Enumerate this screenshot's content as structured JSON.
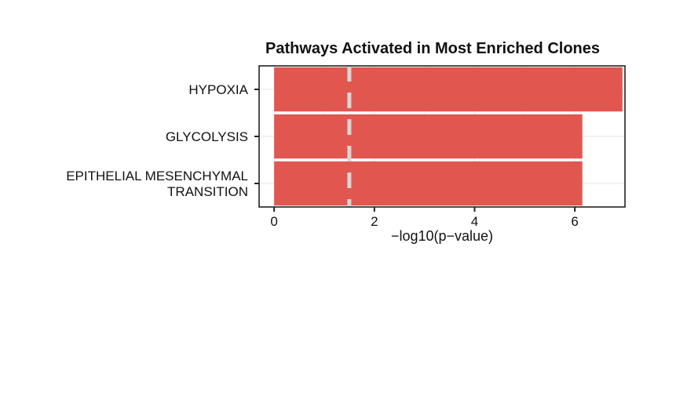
{
  "chart_data": {
    "type": "bar",
    "orientation": "horizontal",
    "title": "Pathways Activated in Most Enriched Clones",
    "xlabel": "−log10(p−value)",
    "ylabel": "",
    "categories": [
      [
        "HYPOXIA"
      ],
      [
        "GLYCOLYSIS"
      ],
      [
        "EPITHELIAL MESENCHYMAL",
        "TRANSITION"
      ]
    ],
    "values": [
      6.95,
      6.15,
      6.15
    ],
    "xlim": [
      -0.3,
      7.0
    ],
    "xticks": [
      0,
      2,
      4,
      6
    ],
    "xtick_labels": [
      "0",
      "2",
      "4",
      "6"
    ],
    "reference_line": {
      "x": 1.5,
      "style": "dashed"
    },
    "grid": true,
    "legend": "none",
    "bar_color": "#e0524a",
    "reference_line_color": "#d6d6d6"
  }
}
